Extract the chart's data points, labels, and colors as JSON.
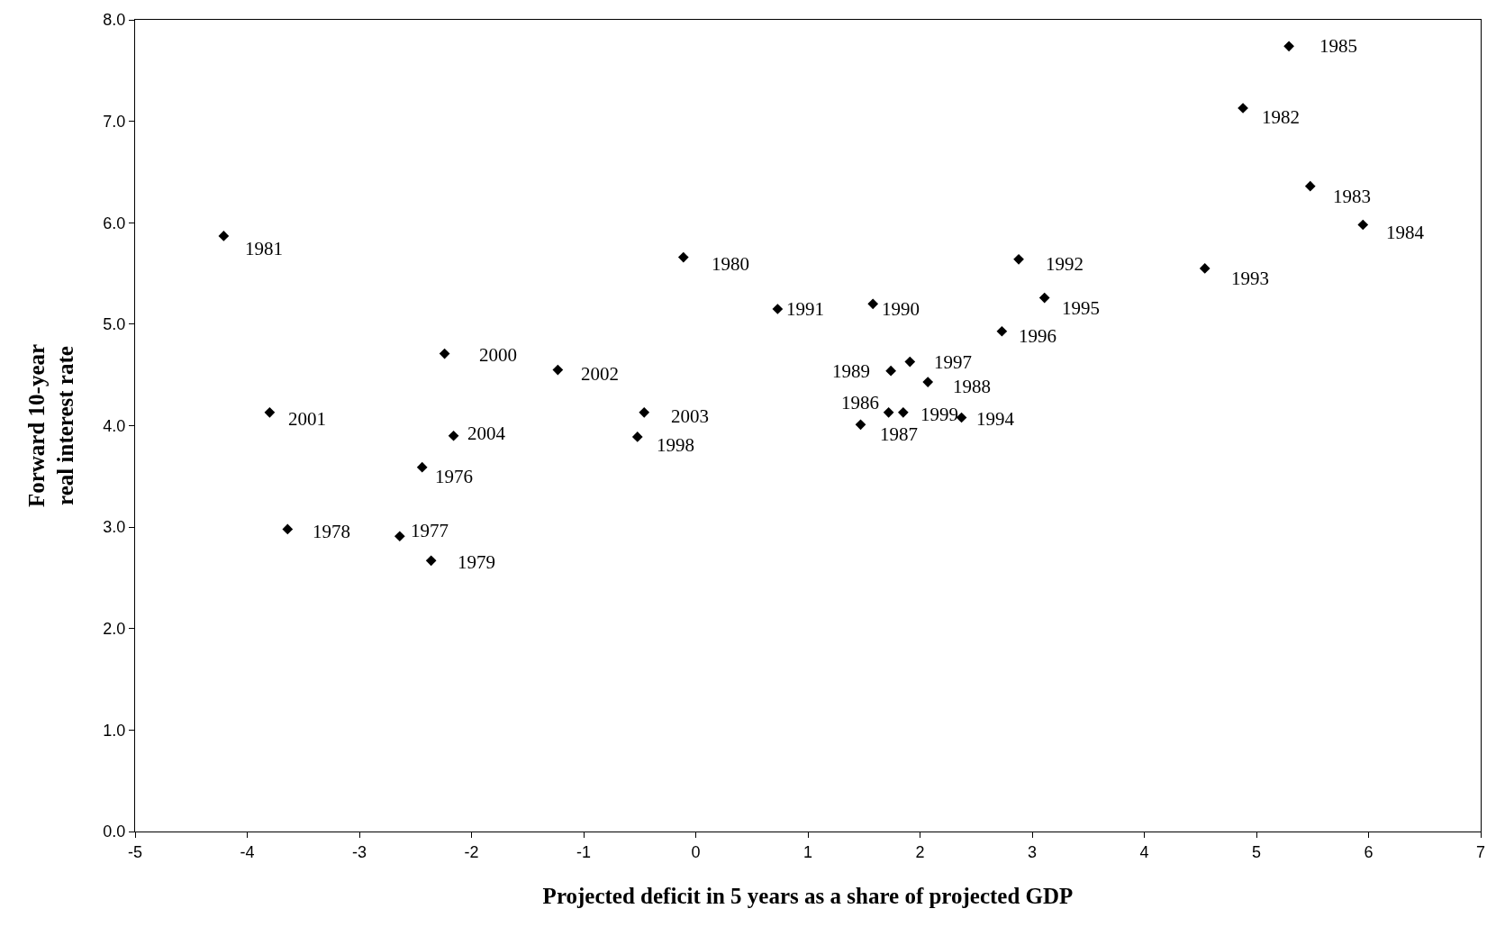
{
  "chart_data": {
    "type": "scatter",
    "xlabel": "Projected deficit in 5 years as a share of projected GDP",
    "ylabel": "Forward 10-year\nreal interest rate",
    "x": [
      -4.21,
      -0.11,
      5.29,
      4.88,
      5.48,
      5.95,
      4.54,
      2.88,
      3.11,
      2.73,
      0.73,
      1.58,
      1.74,
      1.91,
      2.07,
      1.72,
      1.85,
      1.47,
      2.37,
      -2.24,
      -1.23,
      -0.46,
      -0.52,
      -3.8,
      -2.16,
      -2.44,
      -3.64,
      -2.64,
      -2.36
    ],
    "series": [
      {
        "color": "#000000",
        "values": [
          5.87,
          5.66,
          7.74,
          7.13,
          6.36,
          5.98,
          5.55,
          5.64,
          5.26,
          4.93,
          5.15,
          5.2,
          4.54,
          4.63,
          4.43,
          4.13,
          4.13,
          4.01,
          4.08,
          4.71,
          4.55,
          4.13,
          3.89,
          4.13,
          3.9,
          3.59,
          2.98,
          2.91,
          2.67
        ]
      }
    ],
    "annotations": [
      {
        "text": "1981",
        "x": -4.21,
        "y": 5.87
      },
      {
        "text": "1980",
        "x": -0.11,
        "y": 5.66
      },
      {
        "text": "1985",
        "x": 5.29,
        "y": 7.74
      },
      {
        "text": "1982",
        "x": 4.88,
        "y": 7.13
      },
      {
        "text": "1983",
        "x": 5.48,
        "y": 6.36
      },
      {
        "text": "1984",
        "x": 5.95,
        "y": 5.98
      },
      {
        "text": "1993",
        "x": 4.54,
        "y": 5.55
      },
      {
        "text": "1992",
        "x": 2.88,
        "y": 5.64
      },
      {
        "text": "1995",
        "x": 3.11,
        "y": 5.26
      },
      {
        "text": "1996",
        "x": 2.73,
        "y": 4.93
      },
      {
        "text": "1991",
        "x": 0.73,
        "y": 5.15
      },
      {
        "text": "1990",
        "x": 1.58,
        "y": 5.2
      },
      {
        "text": "1989",
        "x": 1.74,
        "y": 4.54
      },
      {
        "text": "1997",
        "x": 1.91,
        "y": 4.63
      },
      {
        "text": "1988",
        "x": 2.07,
        "y": 4.43
      },
      {
        "text": "1986",
        "x": 1.72,
        "y": 4.13
      },
      {
        "text": "1999",
        "x": 1.85,
        "y": 4.13
      },
      {
        "text": "1987",
        "x": 1.47,
        "y": 4.01
      },
      {
        "text": "1994",
        "x": 2.37,
        "y": 4.08
      },
      {
        "text": "2000",
        "x": -2.24,
        "y": 4.71
      },
      {
        "text": "2002",
        "x": -1.23,
        "y": 4.55
      },
      {
        "text": "2003",
        "x": -0.46,
        "y": 4.13
      },
      {
        "text": "1998",
        "x": -0.52,
        "y": 3.89
      },
      {
        "text": "2001",
        "x": -3.8,
        "y": 4.13
      },
      {
        "text": "2004",
        "x": -2.16,
        "y": 3.9
      },
      {
        "text": "1976",
        "x": -2.44,
        "y": 3.59
      },
      {
        "text": "1978",
        "x": -3.64,
        "y": 2.98
      },
      {
        "text": "1977",
        "x": -2.64,
        "y": 2.91
      },
      {
        "text": "1979",
        "x": -2.36,
        "y": 2.67
      }
    ],
    "xlim": [
      -5,
      7
    ],
    "xticks": [
      -5,
      -4,
      -3,
      -2,
      -1,
      0,
      1,
      2,
      3,
      4,
      5,
      6,
      7
    ],
    "ylim": [
      0,
      8
    ],
    "yticks": [
      {
        "value": 0,
        "label": "0.0"
      },
      {
        "value": 1,
        "label": "1.0"
      },
      {
        "value": 2,
        "label": "2.0"
      },
      {
        "value": 3,
        "label": "3.0"
      },
      {
        "value": 4,
        "label": "4.0"
      },
      {
        "value": 5,
        "label": "5.0"
      },
      {
        "value": 6,
        "label": "6.0"
      },
      {
        "value": 7,
        "label": "7.0"
      },
      {
        "value": 8,
        "label": "8.0"
      }
    ],
    "marker": "diamond"
  }
}
